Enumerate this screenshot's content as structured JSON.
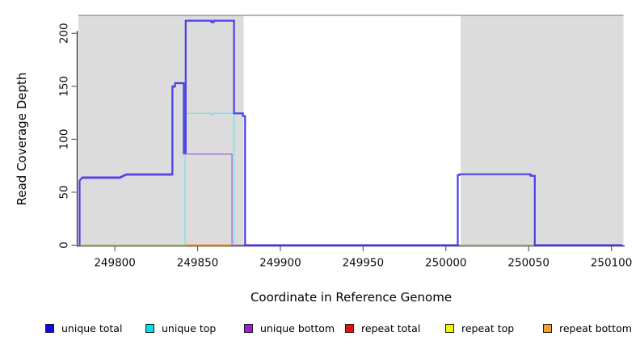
{
  "axes": {
    "x": {
      "label": "Coordinate in Reference Genome",
      "ticks": [
        249800,
        249850,
        249900,
        249950,
        250000,
        250050,
        250100
      ]
    },
    "y": {
      "label": "Read Coverage Depth",
      "ticks": [
        0,
        50,
        100,
        150,
        200
      ]
    }
  },
  "chart_data": {
    "type": "line",
    "title": "",
    "xlabel": "Coordinate in Reference Genome",
    "ylabel": "Read Coverage Depth",
    "xlim": [
      249777.5,
      250108
    ],
    "ylim": [
      0,
      217
    ],
    "grid": false,
    "legend_position": "bottom",
    "shaded_regions": [
      {
        "x0": 249778,
        "x1": 249877.8,
        "color": "#DCDCDC"
      },
      {
        "x0": 250008.9,
        "x1": 250107.3,
        "color": "#DCDCDC"
      }
    ],
    "top_border": {
      "x0": 249778,
      "x1": 250107.3,
      "color": "#9B9B9B",
      "width": 1.4
    },
    "series": [
      {
        "name": "repeat total",
        "color": "#E01010",
        "width": 1.2,
        "points": [
          [
            249778.5,
            0
          ],
          [
            250106.7,
            0
          ]
        ]
      },
      {
        "name": "repeat top",
        "color": "#F0F000",
        "width": 1.2,
        "points": [
          [
            249778.5,
            0
          ],
          [
            250106.7,
            0
          ]
        ]
      },
      {
        "name": "unique bottom",
        "color": "#A36EDB",
        "width": 1.4,
        "points": [
          [
            249778.5,
            0
          ],
          [
            249778.5,
            60
          ],
          [
            249780,
            63
          ],
          [
            249803,
            63
          ],
          [
            249807,
            66
          ],
          [
            249834.6,
            66
          ],
          [
            249834.6,
            149
          ],
          [
            249836.2,
            149
          ],
          [
            249836.2,
            152.5
          ],
          [
            249841.5,
            152.5
          ],
          [
            249841.5,
            86
          ],
          [
            249870.8,
            86
          ],
          [
            249870.8,
            0
          ],
          [
            250106.7,
            0
          ]
        ]
      },
      {
        "name": "zero-depth baseline (left)",
        "color": "#92D892",
        "width": 1.5,
        "points": [
          [
            249778.5,
            0
          ],
          [
            249842.5,
            0
          ]
        ]
      },
      {
        "name": "zero-depth baseline (right)",
        "color": "#92D892",
        "width": 1.5,
        "points": [
          [
            250008.3,
            0
          ],
          [
            250053,
            0
          ]
        ]
      },
      {
        "name": "repeat bottom",
        "color": "#FF8F20",
        "width": 1.8,
        "points": [
          [
            249842.5,
            0
          ],
          [
            249870.5,
            0
          ]
        ]
      },
      {
        "name": "unique top",
        "color": "#70E8E8",
        "width": 1.4,
        "points": [
          [
            249842.5,
            0
          ],
          [
            249842.5,
            124.5
          ],
          [
            249858.4,
            124.5
          ],
          [
            249858.4,
            123.2
          ],
          [
            249859.8,
            123.2
          ],
          [
            249859.8,
            124.5
          ],
          [
            249872,
            124.5
          ],
          [
            249872,
            0
          ]
        ]
      },
      {
        "name": "unique total",
        "color": "#4A40E6",
        "width": 2.2,
        "points": [
          [
            249778.7,
            0
          ],
          [
            249778.7,
            61
          ],
          [
            249780.5,
            64
          ],
          [
            249803,
            64
          ],
          [
            249805,
            65.5
          ],
          [
            249807,
            67
          ],
          [
            249834.8,
            67
          ],
          [
            249834.8,
            150
          ],
          [
            249836.4,
            150
          ],
          [
            249836.4,
            153
          ],
          [
            249841.7,
            153
          ],
          [
            249841.7,
            87
          ],
          [
            249842.8,
            87
          ],
          [
            249842.8,
            212
          ],
          [
            249858.4,
            212
          ],
          [
            249858.4,
            210.6
          ],
          [
            249859.8,
            210.6
          ],
          [
            249859.8,
            212
          ],
          [
            249872,
            212
          ],
          [
            249872,
            124.5
          ],
          [
            249877.4,
            124.5
          ],
          [
            249877.4,
            122
          ],
          [
            249878.7,
            122
          ],
          [
            249878.7,
            0
          ],
          [
            250007.2,
            0
          ],
          [
            250007.2,
            66.2
          ],
          [
            250008.2,
            66.2
          ],
          [
            250008.2,
            67
          ],
          [
            250051.2,
            67
          ],
          [
            250051.2,
            65.5
          ],
          [
            250053.7,
            65.5
          ],
          [
            250053.7,
            0
          ],
          [
            250106.7,
            0
          ]
        ]
      }
    ]
  },
  "legend": {
    "items": [
      {
        "label": "unique total",
        "color": "#0B0BEB"
      },
      {
        "label": "unique top",
        "color": "#00E0E8"
      },
      {
        "label": "unique bottom",
        "color": "#A21BDB"
      },
      {
        "label": "repeat total",
        "color": "#E81010"
      },
      {
        "label": "repeat top",
        "color": "#F5F500"
      },
      {
        "label": "repeat bottom",
        "color": "#F0A030"
      }
    ]
  }
}
